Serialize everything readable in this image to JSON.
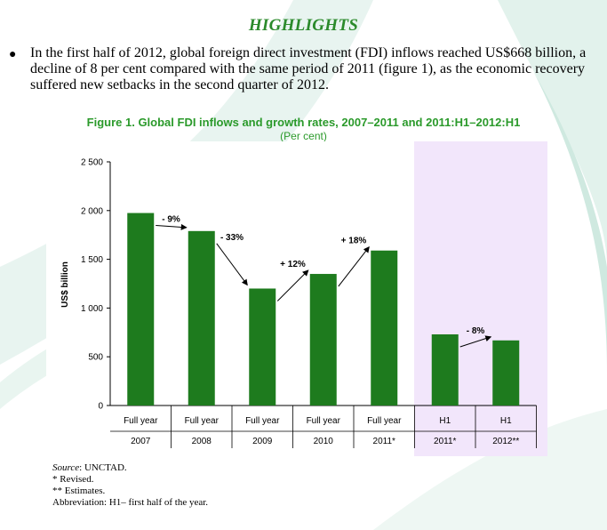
{
  "heading": "HIGHLIGHTS",
  "bullet": "In the first half of 2012, global foreign direct investment (FDI) inflows reached US$668 billion, a decline of 8 per cent compared with the same period of 2011 (figure 1), as the economic recovery suffered new setbacks in the second quarter of 2012.",
  "figure": {
    "title": "Figure 1.  Global FDI inflows and growth rates, 2007–2011 and 2011:H1–2012:H1",
    "subtitle": "(Per cent)"
  },
  "chart_data": {
    "type": "bar",
    "ylabel": "US$ billion",
    "ylim": [
      0,
      2500
    ],
    "yticks": [
      0,
      500,
      1000,
      1500,
      2000,
      2500
    ],
    "ytick_labels": [
      "0",
      "500",
      "1 000",
      "1 500",
      "2 000",
      "2 500"
    ],
    "categories_line1": [
      "Full year",
      "Full year",
      "Full year",
      "Full year",
      "Full year",
      "H1",
      "H1"
    ],
    "categories_line2": [
      "2007",
      "2008",
      "2009",
      "2010",
      "2011*",
      "2011*",
      "2012**"
    ],
    "values": [
      1975,
      1790,
      1200,
      1350,
      1590,
      730,
      668
    ],
    "growth_labels": [
      "- 9%",
      "- 33%",
      "+ 12%",
      "+ 18%",
      "- 8%"
    ],
    "bar_color": "#1e7b1e"
  },
  "notes": {
    "source_label": "Source",
    "source_value": ": UNCTAD.",
    "revised": "* Revised.",
    "estimates": "** Estimates.",
    "abbreviation": "Abbreviation: H1– first half of the year."
  }
}
